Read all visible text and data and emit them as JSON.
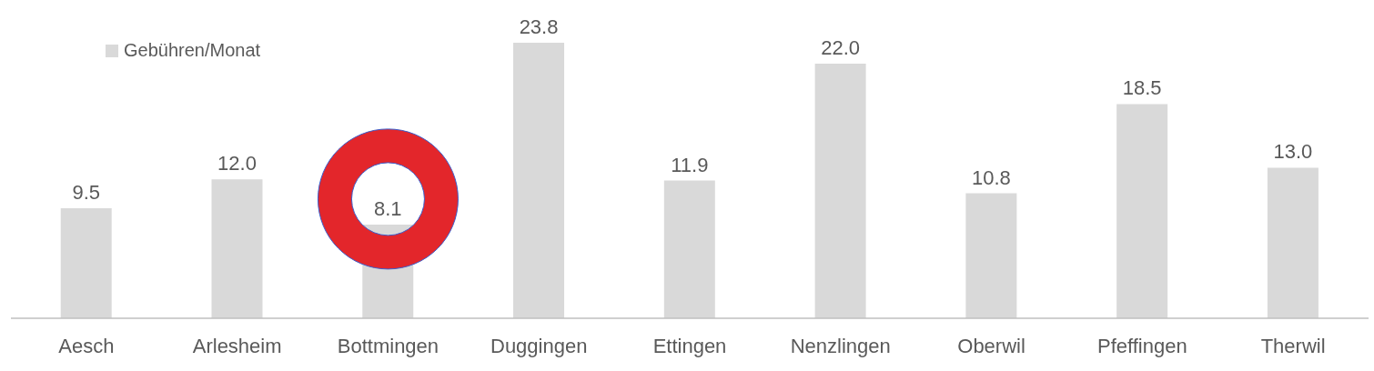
{
  "chart_data": {
    "type": "bar",
    "categories": [
      "Aesch",
      "Arlesheim",
      "Bottmingen",
      "Duggingen",
      "Ettingen",
      "Nenzlingen",
      "Oberwil",
      "Pfeffingen",
      "Therwil"
    ],
    "series": [
      {
        "name": "Gebühren/Monat",
        "color": "#d9d9d9",
        "values": [
          9.5,
          12.0,
          8.1,
          23.8,
          11.9,
          22.0,
          10.8,
          18.5,
          13.0
        ],
        "value_labels": [
          "9.5",
          "12.0",
          "8.1",
          "23.8",
          "11.9",
          "22.0",
          "10.8",
          "18.5",
          "13.0"
        ]
      }
    ],
    "legend": "top left"
  }
}
